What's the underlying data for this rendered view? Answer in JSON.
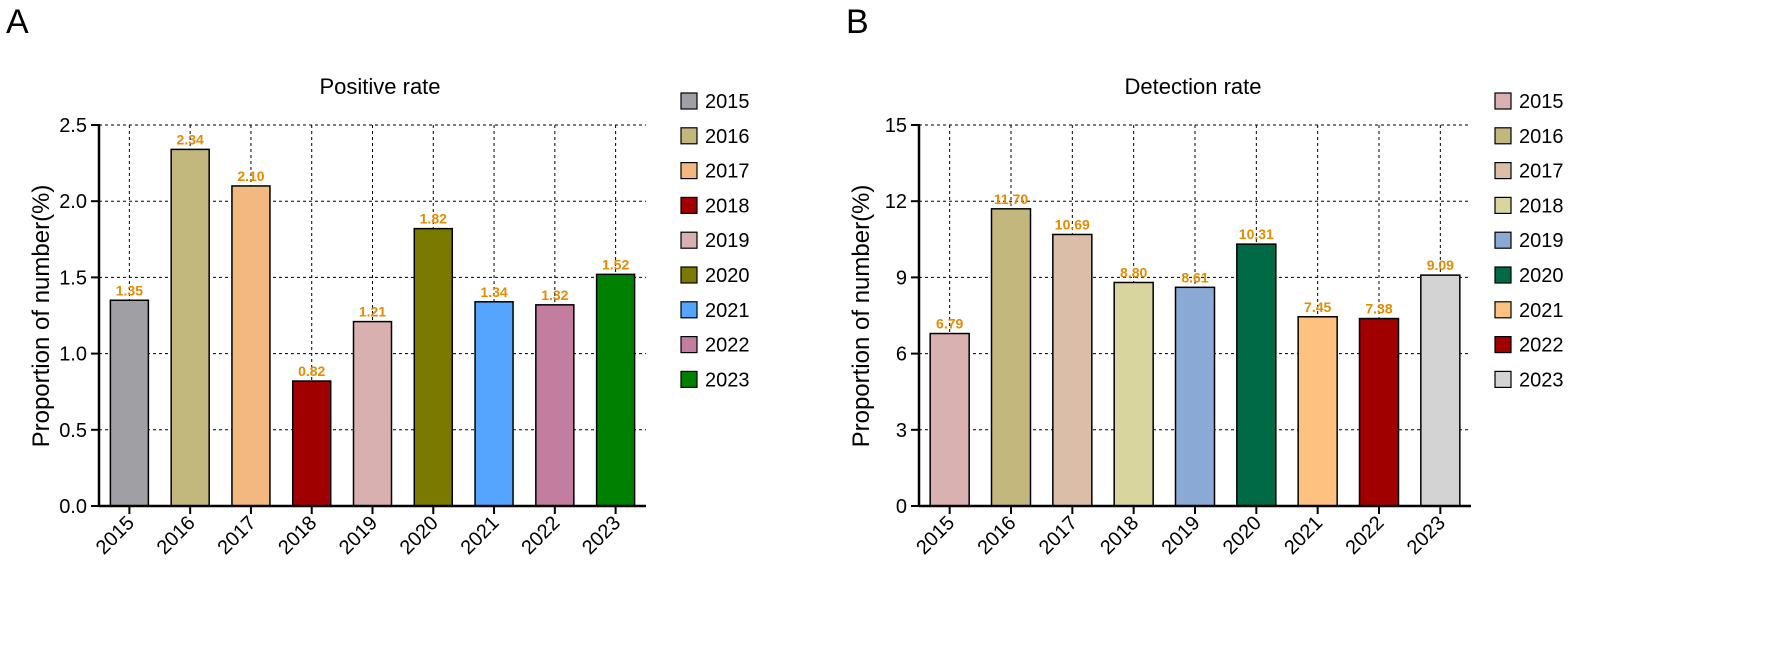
{
  "label_color": "#E68A00",
  "chart_data": [
    {
      "panel": "A",
      "type": "bar",
      "title": "Positive rate",
      "xlabel": "",
      "ylabel": "Proportion of number(%)",
      "ylim": [
        0,
        2.5
      ],
      "yticks": [
        0,
        0.5,
        1.0,
        1.5,
        2.0,
        2.5
      ],
      "ytick_labels": [
        "0.0",
        "0.5",
        "1.0",
        "1.5",
        "2.0",
        "2.5"
      ],
      "grid": true,
      "legend_position": "right",
      "categories": [
        "2015",
        "2016",
        "2017",
        "2018",
        "2019",
        "2020",
        "2021",
        "2022",
        "2023"
      ],
      "values": [
        1.35,
        2.34,
        2.1,
        0.82,
        1.21,
        1.82,
        1.34,
        1.32,
        1.52
      ],
      "value_labels": [
        "1.35",
        "2.34",
        "2.10",
        "0.82",
        "1.21",
        "1.82",
        "1.34",
        "1.32",
        "1.52"
      ],
      "colors": [
        "#A0A0A4",
        "#C2B77C",
        "#F2B880",
        "#A00000",
        "#D8B0B0",
        "#7A7A00",
        "#55A5FF",
        "#C27D9F",
        "#008000"
      ],
      "legend": [
        "2015",
        "2016",
        "2017",
        "2018",
        "2019",
        "2020",
        "2021",
        "2022",
        "2023"
      ]
    },
    {
      "panel": "B",
      "type": "bar",
      "title": "Detection rate",
      "xlabel": "",
      "ylabel": "Proportion of number(%)",
      "ylim": [
        0,
        15
      ],
      "yticks": [
        0,
        3,
        6,
        9,
        12,
        15
      ],
      "ytick_labels": [
        "0",
        "3",
        "6",
        "9",
        "12",
        "15"
      ],
      "grid": true,
      "legend_position": "right",
      "categories": [
        "2015",
        "2016",
        "2017",
        "2018",
        "2019",
        "2020",
        "2021",
        "2022",
        "2023"
      ],
      "values": [
        6.79,
        11.7,
        10.69,
        8.8,
        8.61,
        10.31,
        7.45,
        7.38,
        9.09
      ],
      "value_labels": [
        "6.79",
        "11.70",
        "10.69",
        "8.80",
        "8.61",
        "10.31",
        "7.45",
        "7.38",
        "9.09"
      ],
      "colors": [
        "#D9B1B1",
        "#C2B77C",
        "#DBBEA8",
        "#D8D69E",
        "#8AA9D4",
        "#006A46",
        "#FFC180",
        "#A00000",
        "#D3D3D3"
      ],
      "legend": [
        "2015",
        "2016",
        "2017",
        "2018",
        "2019",
        "2020",
        "2021",
        "2022",
        "2023"
      ]
    }
  ]
}
